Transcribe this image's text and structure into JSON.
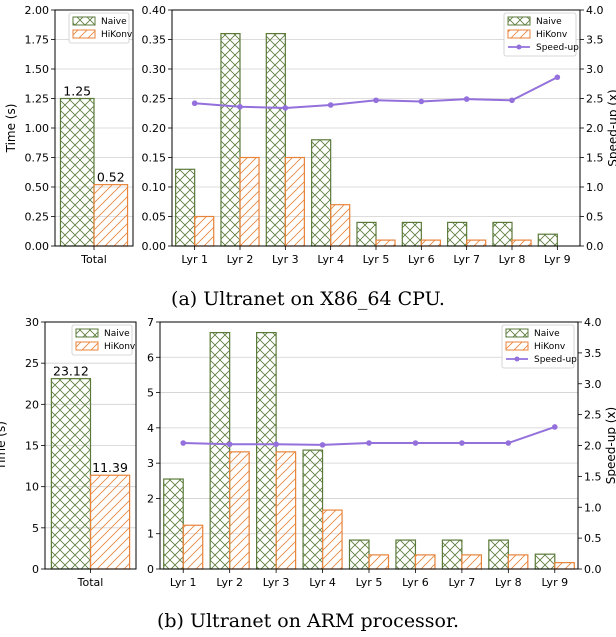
{
  "colors": {
    "naive": "#5a7a3a",
    "hikonv": "#e8833a",
    "speedup": "#9370db",
    "grid": "#d0d0d0"
  },
  "captions": {
    "a": "(a) Ultranet on X86_64 CPU.",
    "b": "(b) Ultranet on ARM processor."
  },
  "chart_data": [
    {
      "id": "a-total",
      "type": "bar",
      "categories": [
        "Total"
      ],
      "series": [
        {
          "name": "Naive",
          "values": [
            1.25
          ]
        },
        {
          "name": "HiKonv",
          "values": [
            0.52
          ]
        }
      ],
      "data_labels": [
        "1.25",
        "0.52"
      ],
      "ylabel": "Time (s)",
      "ylim": [
        0,
        2.0
      ],
      "yticks": [
        "0.00",
        "0.25",
        "0.50",
        "0.75",
        "1.00",
        "1.25",
        "1.50",
        "1.75",
        "2.00"
      ],
      "legend": "top-right",
      "grid": true
    },
    {
      "id": "a-layers",
      "type": "bar",
      "categories": [
        "Lyr 1",
        "Lyr 2",
        "Lyr 3",
        "Lyr 4",
        "Lyr 5",
        "Lyr 6",
        "Lyr 7",
        "Lyr 8",
        "Lyr 9"
      ],
      "series": [
        {
          "name": "Naive",
          "values": [
            0.13,
            0.36,
            0.36,
            0.18,
            0.04,
            0.04,
            0.04,
            0.04,
            0.02
          ]
        },
        {
          "name": "HiKonv",
          "values": [
            0.05,
            0.15,
            0.15,
            0.07,
            0.01,
            0.01,
            0.01,
            0.01,
            0.0
          ]
        }
      ],
      "speedup": {
        "name": "Speed-up",
        "values": [
          2.42,
          2.36,
          2.34,
          2.39,
          2.47,
          2.45,
          2.49,
          2.47,
          2.86
        ]
      },
      "ylim": [
        0,
        0.4
      ],
      "yticks": [
        "0.00",
        "0.05",
        "0.10",
        "0.15",
        "0.20",
        "0.25",
        "0.30",
        "0.35",
        "0.40"
      ],
      "y2label": "Speed-up (x)",
      "y2lim": [
        0,
        4.0
      ],
      "y2ticks": [
        "0.0",
        "0.5",
        "1.0",
        "1.5",
        "2.0",
        "2.5",
        "3.0",
        "3.5",
        "4.0"
      ],
      "legend": "top-right",
      "grid": true
    },
    {
      "id": "b-total",
      "type": "bar",
      "categories": [
        "Total"
      ],
      "series": [
        {
          "name": "Naive",
          "values": [
            23.12
          ]
        },
        {
          "name": "HiKonv",
          "values": [
            11.39
          ]
        }
      ],
      "data_labels": [
        "23.12",
        "11.39"
      ],
      "ylabel": "Time (s)",
      "ylim": [
        0,
        30
      ],
      "yticks": [
        "0",
        "5",
        "10",
        "15",
        "20",
        "25",
        "30"
      ],
      "legend": "top-right",
      "grid": true
    },
    {
      "id": "b-layers",
      "type": "bar",
      "categories": [
        "Lyr 1",
        "Lyr 2",
        "Lyr 3",
        "Lyr 4",
        "Lyr 5",
        "Lyr 6",
        "Lyr 7",
        "Lyr 8",
        "Lyr 9"
      ],
      "series": [
        {
          "name": "Naive",
          "values": [
            2.55,
            6.7,
            6.7,
            3.37,
            0.82,
            0.82,
            0.82,
            0.82,
            0.42
          ]
        },
        {
          "name": "HiKonv",
          "values": [
            1.24,
            3.32,
            3.32,
            1.67,
            0.4,
            0.4,
            0.4,
            0.4,
            0.18
          ]
        }
      ],
      "speedup": {
        "name": "Speed-up",
        "values": [
          2.04,
          2.02,
          2.02,
          2.01,
          2.04,
          2.04,
          2.04,
          2.04,
          2.3
        ]
      },
      "ylim": [
        0,
        7
      ],
      "yticks": [
        "0",
        "1",
        "2",
        "3",
        "4",
        "5",
        "6",
        "7"
      ],
      "y2label": "Speed-up (x)",
      "y2lim": [
        0,
        4.0
      ],
      "y2ticks": [
        "0.0",
        "0.5",
        "1.0",
        "1.5",
        "2.0",
        "2.5",
        "3.0",
        "3.5",
        "4.0"
      ],
      "legend": "top-right",
      "grid": true
    }
  ]
}
